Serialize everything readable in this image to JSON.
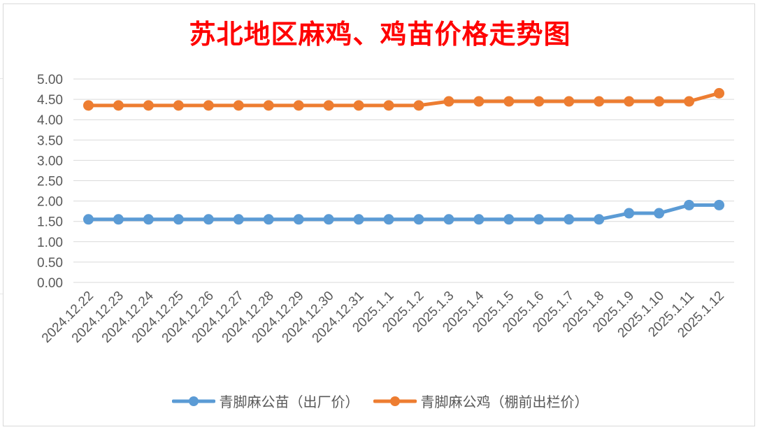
{
  "chart_data": {
    "type": "line",
    "title": "苏北地区麻鸡、鸡苗价格走势图",
    "xlabel": "",
    "ylabel": "",
    "ylim": [
      0,
      5
    ],
    "y_ticks": [
      "5.00",
      "4.50",
      "4.00",
      "3.50",
      "3.00",
      "2.50",
      "2.00",
      "1.50",
      "1.00",
      "0.50",
      "0.00"
    ],
    "categories": [
      "2024.12.22",
      "2024.12.23",
      "2024.12.24",
      "2024.12.25",
      "2024.12.26",
      "2024.12.27",
      "2024.12.28",
      "2024.12.29",
      "2024.12.30",
      "2024.12.31",
      "2025.1.1",
      "2025.1.2",
      "2025.1.3",
      "2025.1.4",
      "2025.1.5",
      "2025.1.6",
      "2025.1.7",
      "2025.1.8",
      "2025.1.9",
      "2025.1.10",
      "2025.1.11",
      "2025.1.12"
    ],
    "series": [
      {
        "name": "青脚麻公苗（出厂价）",
        "color": "#5b9bd5",
        "values": [
          1.55,
          1.55,
          1.55,
          1.55,
          1.55,
          1.55,
          1.55,
          1.55,
          1.55,
          1.55,
          1.55,
          1.55,
          1.55,
          1.55,
          1.55,
          1.55,
          1.55,
          1.55,
          1.7,
          1.7,
          1.9,
          1.9
        ]
      },
      {
        "name": "青脚麻公鸡（棚前出栏价）",
        "color": "#ed7d31",
        "values": [
          4.35,
          4.35,
          4.35,
          4.35,
          4.35,
          4.35,
          4.35,
          4.35,
          4.35,
          4.35,
          4.35,
          4.35,
          4.45,
          4.45,
          4.45,
          4.45,
          4.45,
          4.45,
          4.45,
          4.45,
          4.45,
          4.65
        ]
      }
    ],
    "grid": true,
    "legend_position": "bottom"
  }
}
